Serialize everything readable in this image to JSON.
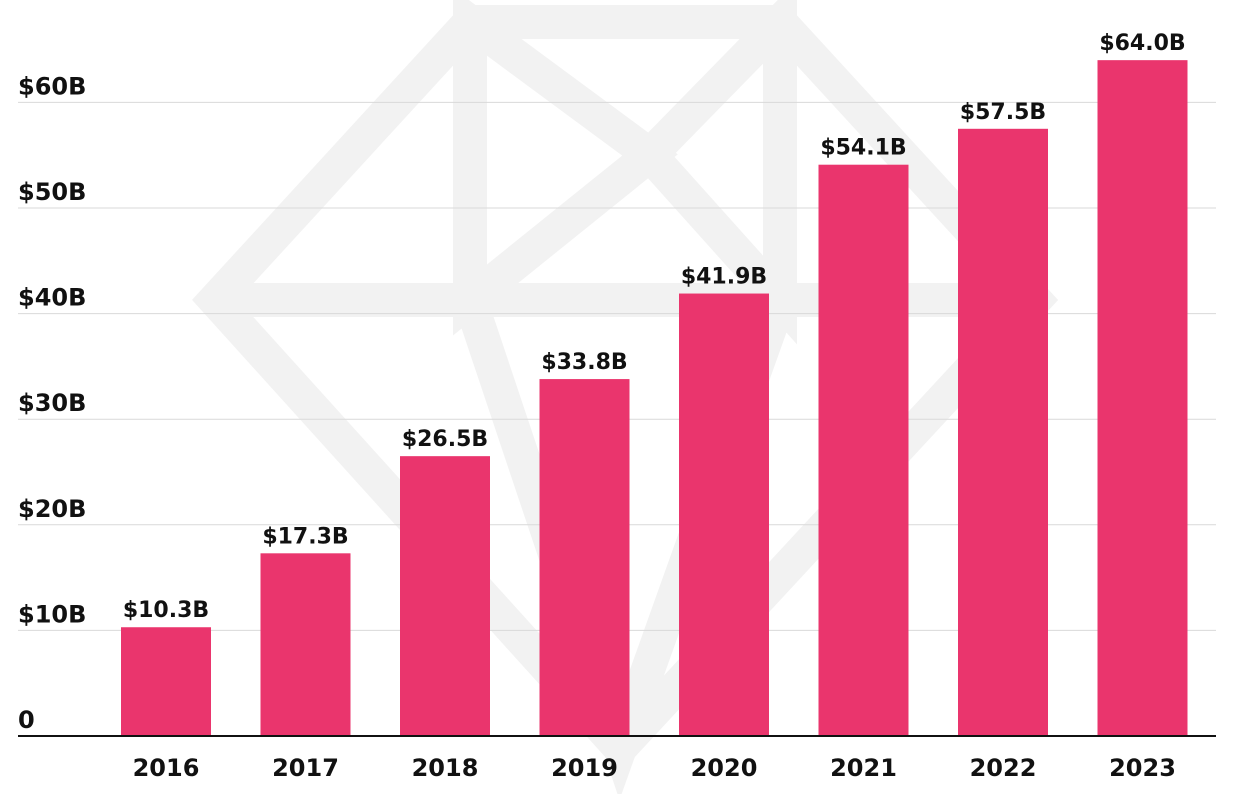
{
  "chart_data": {
    "type": "bar",
    "title": "",
    "xlabel": "",
    "ylabel": "",
    "categories": [
      "2016",
      "2017",
      "2018",
      "2019",
      "2020",
      "2021",
      "2022",
      "2023"
    ],
    "values": [
      10.3,
      17.3,
      26.5,
      33.8,
      41.9,
      54.1,
      57.5,
      64.0
    ],
    "data_labels": [
      "$10.3B",
      "$17.3B",
      "$26.5B",
      "$33.8B",
      "$41.9B",
      "$54.1B",
      "$57.5B",
      "$64.0B"
    ],
    "y_ticks": [
      {
        "value": 0,
        "label": "0"
      },
      {
        "value": 10,
        "label": "$10B"
      },
      {
        "value": 20,
        "label": "$20B"
      },
      {
        "value": 30,
        "label": "$30B"
      },
      {
        "value": 40,
        "label": "$40B"
      },
      {
        "value": 50,
        "label": "$50B"
      },
      {
        "value": 60,
        "label": "$60B"
      }
    ],
    "ylim": [
      0,
      64
    ],
    "grid": true,
    "legend": "none",
    "bar_color": "#ea356d",
    "grid_color": "#d9d9d9",
    "axis_color": "#111111",
    "watermark": "diamond-logo"
  }
}
